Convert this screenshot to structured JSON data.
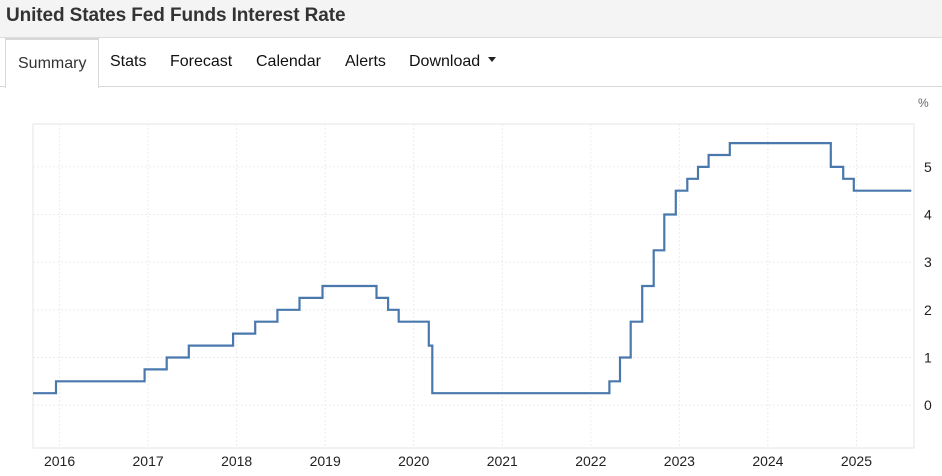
{
  "page": {
    "title": "United States Fed Funds Interest Rate"
  },
  "tabs": [
    {
      "label": "Summary",
      "active": true
    },
    {
      "label": "Stats"
    },
    {
      "label": "Forecast"
    },
    {
      "label": "Calendar"
    },
    {
      "label": "Alerts"
    },
    {
      "label": "Download",
      "dropdown": true
    }
  ],
  "chart_data": {
    "type": "line",
    "step": true,
    "unit": "%",
    "line_color": "#4a78ad",
    "grid": true,
    "xlim": [
      2015.7,
      2025.65
    ],
    "ylim": [
      -0.9,
      5.9
    ],
    "x_ticks": [
      2016,
      2017,
      2018,
      2019,
      2020,
      2021,
      2022,
      2023,
      2024,
      2025
    ],
    "x_tick_labels": [
      "2016",
      "2017",
      "2018",
      "2019",
      "2020",
      "2021",
      "2022",
      "2023",
      "2024",
      "2025"
    ],
    "y_ticks": [
      0,
      1,
      2,
      3,
      4,
      5
    ],
    "y_tick_labels": [
      "0",
      "1",
      "2",
      "3",
      "4",
      "5"
    ],
    "series": [
      {
        "x": [
          2015.7,
          2015.96,
          2016.96,
          2017.21,
          2017.46,
          2017.96,
          2018.21,
          2018.46,
          2018.71,
          2018.97,
          2019.58,
          2019.71,
          2019.83,
          2020.17,
          2020.21,
          2022.21,
          2022.33,
          2022.45,
          2022.58,
          2022.71,
          2022.83,
          2022.96,
          2023.09,
          2023.21,
          2023.33,
          2023.57,
          2024.71,
          2024.85,
          2024.97,
          2025.62
        ],
        "y": [
          0.25,
          0.5,
          0.75,
          1.0,
          1.25,
          1.5,
          1.75,
          2.0,
          2.25,
          2.5,
          2.25,
          2.0,
          1.75,
          1.25,
          0.25,
          0.5,
          1.0,
          1.75,
          2.5,
          3.25,
          4.0,
          4.5,
          4.75,
          5.0,
          5.25,
          5.5,
          5.0,
          4.75,
          4.5,
          4.5
        ]
      }
    ]
  }
}
